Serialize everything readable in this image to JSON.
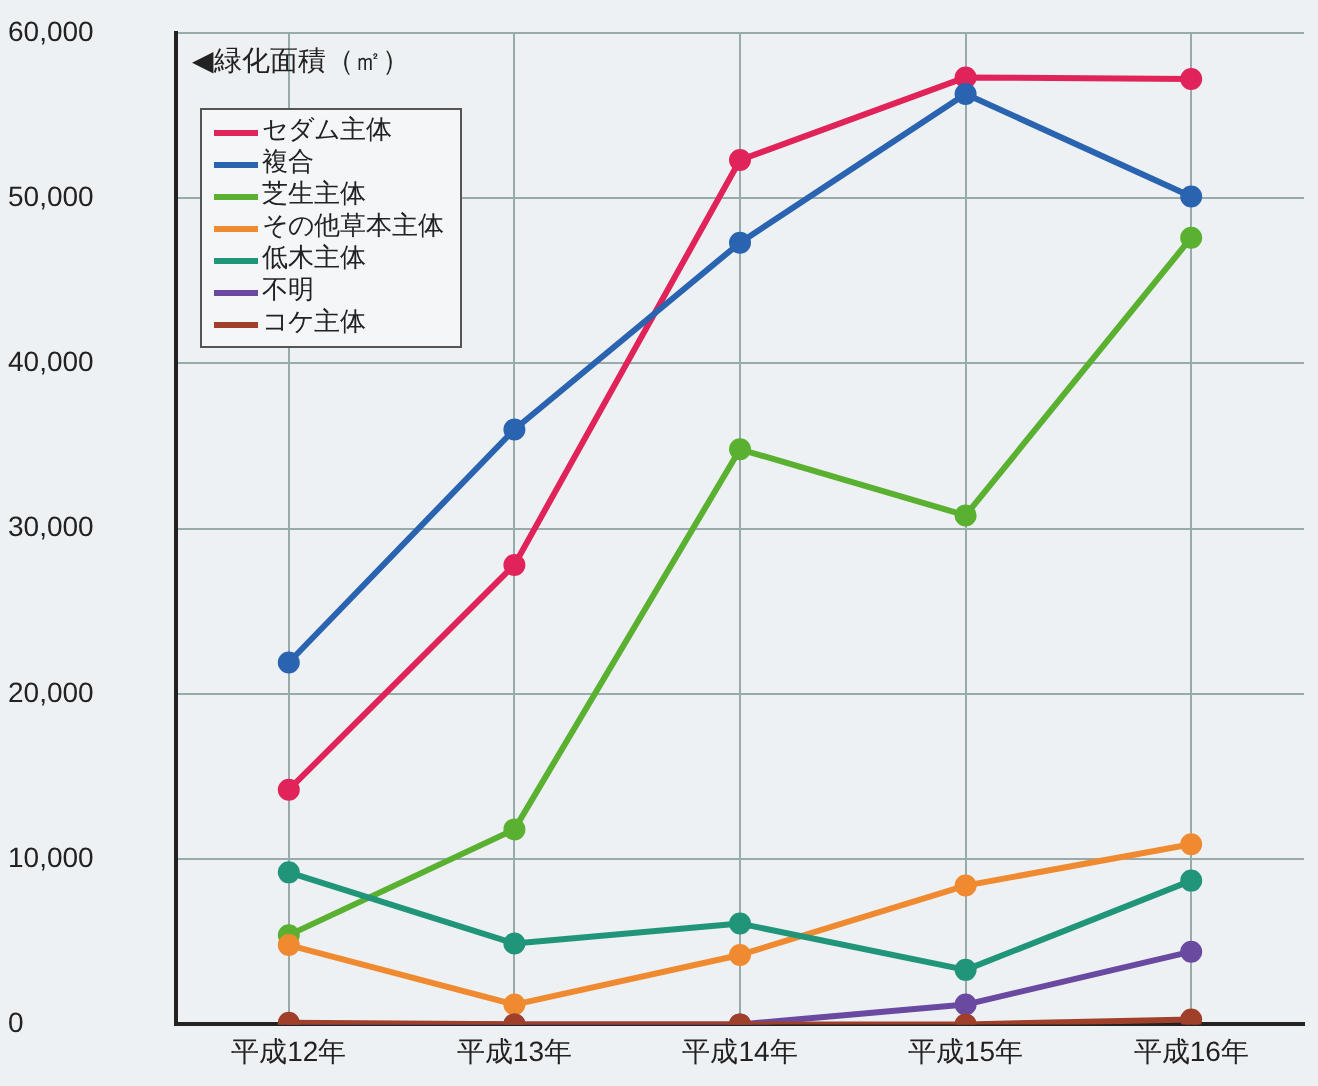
{
  "chart_data": {
    "type": "line",
    "ylabel": "◀緑化面積（㎡）",
    "categories": [
      "平成12年",
      "平成13年",
      "平成14年",
      "平成15年",
      "平成16年"
    ],
    "series": [
      {
        "name": "セダム主体",
        "color": "#e0245a",
        "values": [
          14200,
          27800,
          52300,
          57300,
          57200
        ]
      },
      {
        "name": "複合",
        "color": "#2a64b0",
        "values": [
          21900,
          36000,
          47300,
          56300,
          50100
        ]
      },
      {
        "name": "芝生主体",
        "color": "#5ab030",
        "values": [
          5400,
          11800,
          34800,
          30800,
          47600
        ]
      },
      {
        "name": "その他草本主体",
        "color": "#f08a30",
        "values": [
          4800,
          1200,
          4200,
          8400,
          10900
        ]
      },
      {
        "name": "低木主体",
        "color": "#20957a",
        "values": [
          9200,
          4900,
          6100,
          3300,
          8700
        ]
      },
      {
        "name": "不明",
        "color": "#6a4aa0",
        "values": [
          0,
          0,
          0,
          1200,
          4400
        ]
      },
      {
        "name": "コケ主体",
        "color": "#a0402a",
        "values": [
          100,
          0,
          0,
          0,
          300
        ]
      }
    ],
    "ylim": [
      0,
      60000
    ],
    "yticks": [
      0,
      {
        "value": 10000,
        "label": "10,000"
      },
      {
        "value": 20000,
        "label": "20,000"
      },
      {
        "value": 30000,
        "label": "30,000"
      },
      {
        "value": 40000,
        "label": "40,000"
      },
      {
        "value": 50000,
        "label": "50,000"
      },
      {
        "value": 60000,
        "label": "60,000"
      }
    ],
    "grid": true,
    "legend": "top left",
    "marker": "circle",
    "line_style": "solid"
  }
}
